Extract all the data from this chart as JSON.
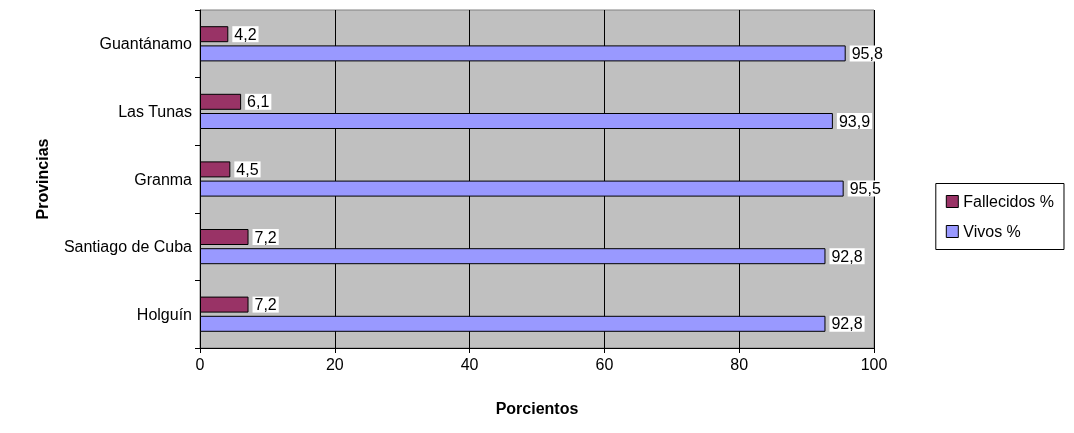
{
  "chart_data": {
    "type": "bar",
    "orientation": "horizontal",
    "xlabel": "Porcientos",
    "ylabel": "Provincias",
    "categories": [
      "Guantánamo",
      "Las Tunas",
      "Granma",
      "Santiago de Cuba",
      "Holguín"
    ],
    "series": [
      {
        "name": "Fallecidos %",
        "color": "#993366",
        "values": [
          4.2,
          6.1,
          4.5,
          7.2,
          7.2
        ],
        "value_labels": [
          "4,2",
          "6,1",
          "4,5",
          "7,2",
          "7,2"
        ]
      },
      {
        "name": "Vivos %",
        "color": "#9999ff",
        "values": [
          95.8,
          93.9,
          95.5,
          92.8,
          92.8
        ],
        "value_labels": [
          "95,8",
          "93,9",
          "95,5",
          "92,8",
          "92,8"
        ]
      }
    ],
    "xlim": [
      0,
      100
    ],
    "xticks": [
      0,
      20,
      40,
      60,
      80,
      100
    ],
    "grid": "x",
    "legend": "right"
  }
}
